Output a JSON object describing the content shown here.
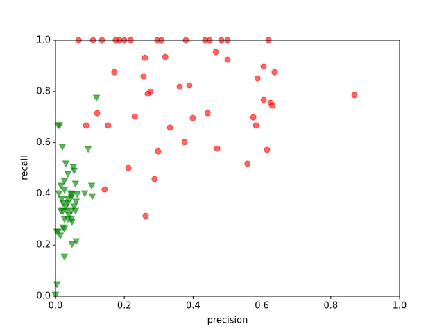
{
  "chart_data": {
    "type": "scatter",
    "x_label": "precision",
    "y_label": "recall",
    "xlim": [
      0,
      1
    ],
    "ylim": [
      0,
      1
    ],
    "xticks": [
      {
        "value": 0,
        "label": "0.0"
      },
      0.2,
      0.4,
      0.6,
      0.8,
      {
        "value": 1,
        "label": "1.0"
      }
    ],
    "yticks": [
      {
        "value": 0,
        "label": "0.0"
      },
      0.2,
      0.4,
      0.6,
      0.8,
      {
        "value": 1,
        "label": "1.0"
      }
    ],
    "grid": false,
    "series": [
      {
        "color": "#ff0000",
        "marker": "circle",
        "x": [
          0.067,
          0.109,
          0.135,
          0.175,
          0.185,
          0.2,
          0.218,
          0.296,
          0.308,
          0.379,
          0.435,
          0.448,
          0.482,
          0.5,
          0.619,
          0.466,
          0.26,
          0.319,
          0.5,
          0.605,
          0.171,
          0.637,
          0.256,
          0.587,
          0.361,
          0.389,
          0.276,
          0.268,
          0.869,
          0.605,
          0.625,
          0.63,
          0.121,
          0.442,
          0.23,
          0.575,
          0.399,
          0.089,
          0.153,
          0.583,
          0.333,
          0.375,
          0.47,
          0.615,
          0.298,
          0.558,
          0.212,
          0.143,
          0.288,
          0.262
        ],
        "values": [
          1,
          1,
          1,
          1,
          1,
          1,
          1,
          1,
          1,
          1,
          1,
          1,
          1,
          1,
          1,
          0.954,
          0.932,
          0.935,
          0.924,
          0.897,
          0.875,
          0.875,
          0.859,
          0.851,
          0.818,
          0.824,
          0.799,
          0.791,
          0.786,
          0.767,
          0.756,
          0.745,
          0.715,
          0.715,
          0.702,
          0.699,
          0.696,
          0.667,
          0.667,
          0.667,
          0.659,
          0.602,
          0.577,
          0.572,
          0.566,
          0.518,
          0.501,
          0.417,
          0.458,
          0.314
        ]
      },
      {
        "color": "#008000",
        "marker": "triangle-down",
        "x": [
          0.004,
          0,
          0.008,
          0.012,
          0.119,
          0.095,
          0.02,
          0.03,
          0.052,
          0.054,
          0.036,
          0.016,
          0.026,
          0.105,
          0.058,
          0.01,
          0.026,
          0.044,
          0.048,
          0.063,
          0.085,
          0.107,
          0.018,
          0.036,
          0.046,
          0.022,
          0.036,
          0.06,
          0.03,
          0.054,
          0.016,
          0.022,
          0.032,
          0.046,
          0.058,
          0.04,
          0.026,
          0.036,
          0.046,
          0.048,
          0.004,
          0.008,
          0.022,
          0.026,
          0.014,
          0.06,
          0.048,
          0.026
        ],
        "values": [
          0.046,
          0.005,
          0.667,
          0.667,
          0.775,
          0.575,
          0.583,
          0.518,
          0.504,
          0.49,
          0.477,
          0.431,
          0.45,
          0.431,
          0.439,
          0.401,
          0.415,
          0.401,
          0.398,
          0.398,
          0.401,
          0.39,
          0.379,
          0.379,
          0.385,
          0.363,
          0.363,
          0.369,
          0.35,
          0.35,
          0.333,
          0.333,
          0.333,
          0.333,
          0.333,
          0.317,
          0.301,
          0.301,
          0.301,
          0.29,
          0.252,
          0.252,
          0.268,
          0.263,
          0.236,
          0.214,
          0.203,
          0.154
        ]
      }
    ]
  }
}
